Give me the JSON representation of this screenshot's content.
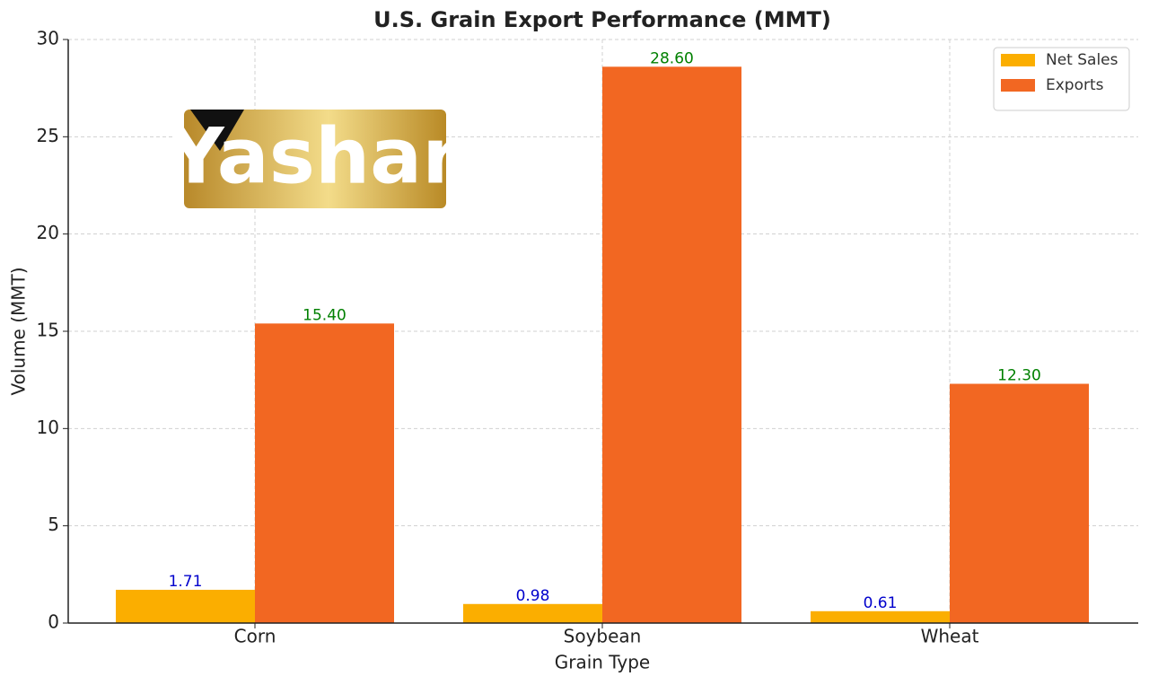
{
  "chart_data": {
    "type": "bar",
    "title": "U.S. Grain Export Performance (MMT)",
    "x_label": "Grain Type",
    "y_label": "Volume (MMT)",
    "categories": [
      "Corn",
      "Soybean",
      "Wheat"
    ],
    "series": [
      {
        "name": "Net Sales",
        "color": "#fbae00",
        "label_color": "#0000cc",
        "values": [
          1.71,
          0.98,
          0.61
        ],
        "value_labels": [
          "1.71",
          "0.98",
          "0.61"
        ]
      },
      {
        "name": "Exports",
        "color": "#f26722",
        "label_color": "#008000",
        "values": [
          15.4,
          28.6,
          12.3
        ],
        "value_labels": [
          "15.40",
          "28.60",
          "12.30"
        ]
      }
    ],
    "ylim": [
      0,
      30
    ],
    "yticks": [
      0,
      5,
      10,
      15,
      20,
      25,
      30
    ],
    "grid": true,
    "legend": "upper right"
  },
  "logo": "Yashar"
}
